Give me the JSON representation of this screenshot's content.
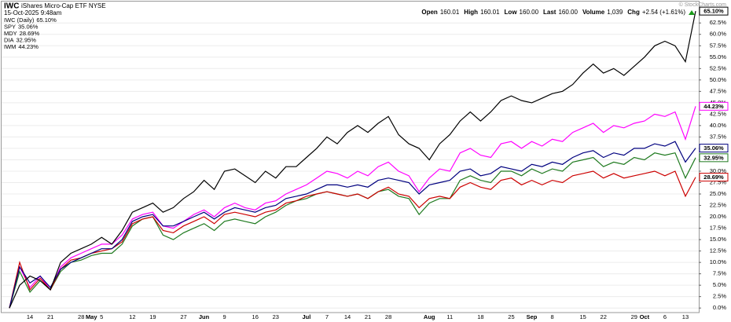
{
  "header": {
    "symbol": "IWC",
    "name": "iShares Micro-Cap ETF",
    "exchange": "NYSE",
    "datetime": "15-Oct-2025 9:48am",
    "quote": [
      {
        "label": "Open",
        "value": "160.01"
      },
      {
        "label": "High",
        "value": "160.01"
      },
      {
        "label": "Low",
        "value": "160.00"
      },
      {
        "label": "Last",
        "value": "160.00"
      },
      {
        "label": "Volume",
        "value": "1,039"
      },
      {
        "label": "Chg",
        "value": "+2.54 (+1.61%)"
      }
    ],
    "watermark": "© StockCharts.com"
  },
  "chart_data": {
    "type": "line",
    "grid": true,
    "categories": [
      null,
      null,
      "14",
      null,
      "21",
      null,
      null,
      "28",
      "May",
      "5",
      null,
      null,
      "12",
      null,
      "19",
      null,
      null,
      "27",
      null,
      "Jun",
      null,
      "9",
      null,
      null,
      "16",
      null,
      "23",
      null,
      null,
      "Jul",
      null,
      "7",
      null,
      "14",
      null,
      "21",
      null,
      "28",
      null,
      null,
      null,
      "Aug",
      null,
      "11",
      null,
      null,
      "18",
      null,
      null,
      "25",
      null,
      "Sep",
      null,
      "8",
      null,
      null,
      "15",
      null,
      "22",
      null,
      null,
      "29",
      "Oct",
      null,
      "6",
      null,
      "13",
      null
    ],
    "ylim": [
      -1,
      66.5
    ],
    "yticks": [
      {
        "value": 0,
        "label": "0.0%"
      },
      {
        "value": 2.5,
        "label": "2.5%"
      },
      {
        "value": 5,
        "label": "5.0%"
      },
      {
        "value": 7.5,
        "label": "7.5%"
      },
      {
        "value": 10,
        "label": "10.0%"
      },
      {
        "value": 12.5,
        "label": "12.5%"
      },
      {
        "value": 15,
        "label": "15.0%"
      },
      {
        "value": 17.5,
        "label": "17.5%"
      },
      {
        "value": 20,
        "label": "20.0%"
      },
      {
        "value": 22.5,
        "label": "22.5%"
      },
      {
        "value": 25,
        "label": "25.0%"
      },
      {
        "value": 27.5,
        "label": "27.5%"
      },
      {
        "value": 30,
        "label": "30.0%"
      },
      {
        "value": 32.5,
        "label": "32.5%"
      },
      {
        "value": 35,
        "label": "35.0%"
      },
      {
        "value": 37.5,
        "label": "37.5%"
      },
      {
        "value": 40,
        "label": "40.0%"
      },
      {
        "value": 42.5,
        "label": "42.5%"
      },
      {
        "value": 45,
        "label": "45.0%"
      },
      {
        "value": 47.5,
        "label": "47.5%"
      },
      {
        "value": 50,
        "label": "50.0%"
      },
      {
        "value": 52.5,
        "label": "52.5%"
      },
      {
        "value": 55,
        "label": "55.0%"
      },
      {
        "value": 57.5,
        "label": "57.5%"
      },
      {
        "value": 60,
        "label": "60.0%"
      },
      {
        "value": 62.5,
        "label": "62.5%"
      }
    ],
    "series": [
      {
        "name": "IWC (Daily)",
        "color": "#000000",
        "last_value_label": "65.10%",
        "values": [
          0,
          5,
          7,
          6,
          4,
          10,
          12,
          13,
          14,
          15.5,
          14,
          17,
          21,
          22,
          23,
          21,
          22,
          24,
          25.5,
          28,
          26,
          30,
          30.5,
          29,
          27.5,
          30,
          28.5,
          31,
          31,
          33,
          35,
          37.5,
          36,
          38.5,
          40,
          38.5,
          40.5,
          42,
          38,
          36,
          35,
          32.5,
          36,
          38,
          41,
          43,
          41,
          43,
          45.5,
          46.5,
          45.5,
          45,
          46,
          47,
          47.5,
          49,
          51.5,
          53.5,
          51.5,
          52.5,
          51,
          53,
          55,
          57.5,
          58.5,
          57.5,
          54,
          65.1
        ]
      },
      {
        "name": "SPY",
        "color": "#00007f",
        "last_value_label": "35.06%",
        "values": [
          0,
          9,
          5.5,
          7,
          4.5,
          8.5,
          10,
          11,
          12,
          13,
          13,
          15,
          19,
          20,
          20.5,
          18,
          18,
          19,
          20,
          21,
          19.5,
          21,
          22,
          21.5,
          21,
          22,
          22.5,
          24,
          24.5,
          25,
          26,
          27,
          27,
          26.5,
          27,
          26.5,
          28,
          28.5,
          28,
          27.5,
          25,
          27,
          27.5,
          28,
          30,
          30.5,
          29,
          29.5,
          31,
          30.5,
          30,
          31.5,
          31,
          32,
          31.5,
          33,
          34,
          34.5,
          33,
          34,
          33.5,
          35,
          35,
          36,
          35.5,
          36.5,
          32,
          35.06
        ]
      },
      {
        "name": "MDY",
        "color": "#cc0000",
        "last_value_label": "28.69%",
        "values": [
          0,
          10,
          4,
          6.5,
          4,
          8.5,
          10.5,
          11,
          12,
          12.5,
          13,
          14.5,
          18.5,
          19.5,
          20,
          17,
          16.5,
          18,
          19,
          20,
          18.5,
          20.5,
          21,
          20.5,
          20,
          21,
          21.5,
          23,
          23.5,
          24.5,
          25,
          25.5,
          25,
          24.5,
          25,
          24,
          25.5,
          26.5,
          25,
          24.5,
          22,
          24,
          24.5,
          24,
          26.5,
          27.5,
          26.5,
          26,
          28,
          28.5,
          27,
          28,
          27,
          28,
          27.5,
          29,
          29.5,
          30,
          28.5,
          29.5,
          28.5,
          29,
          29.5,
          30,
          29,
          30,
          24.5,
          28.69
        ]
      },
      {
        "name": "DIA",
        "color": "#1f7a1f",
        "last_value_label": "32.95%",
        "values": [
          0,
          8,
          3.5,
          6,
          4,
          8,
          10,
          10.5,
          11.5,
          12,
          12,
          14,
          18,
          19.5,
          20,
          16,
          15,
          16.5,
          17.5,
          18.5,
          17,
          19,
          19.5,
          19,
          18.5,
          20,
          21,
          22.5,
          23.5,
          24,
          25,
          25.5,
          25,
          24.5,
          25,
          24,
          25.5,
          26,
          24.5,
          24,
          20.5,
          23,
          24,
          24,
          28,
          29,
          28,
          27.5,
          30,
          30,
          29,
          30.5,
          29.5,
          30.5,
          30,
          32,
          32.5,
          33,
          31,
          32,
          31.5,
          33,
          32.5,
          34,
          33.5,
          34,
          28.5,
          32.95
        ]
      },
      {
        "name": "IWM",
        "color": "#ff00ff",
        "last_value_label": "44.23%",
        "values": [
          0,
          9,
          4.5,
          7,
          4,
          9,
          11,
          12,
          13,
          14,
          14,
          16,
          19.5,
          20.5,
          21,
          18,
          17.5,
          19,
          20.5,
          21.5,
          20,
          22,
          23,
          22,
          21.5,
          23,
          23.5,
          25,
          26,
          27,
          28.5,
          30,
          29.5,
          28.5,
          30,
          29,
          31,
          32,
          30,
          29,
          25.5,
          28.5,
          30.5,
          30,
          34,
          35,
          33.5,
          33,
          36,
          36.5,
          35,
          36.5,
          35.5,
          37,
          36.5,
          38.5,
          39.5,
          40.5,
          38.5,
          40,
          39.5,
          40.5,
          41,
          42.5,
          42,
          43,
          37,
          44.23
        ]
      }
    ]
  }
}
